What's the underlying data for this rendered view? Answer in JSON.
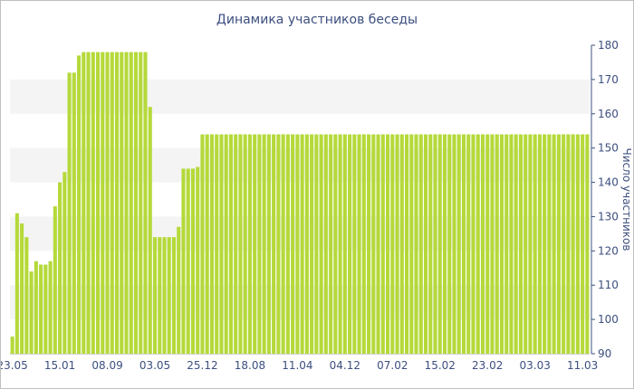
{
  "chart_data": {
    "type": "bar",
    "title": "Динамика участников беседы",
    "ylabel": "Число участников",
    "ylim": [
      90,
      180
    ],
    "y_ticks": [
      90,
      100,
      110,
      120,
      130,
      140,
      150,
      160,
      170,
      180
    ],
    "y_axis_position": "right",
    "x_tick_labels": [
      {
        "index": 0,
        "label": "23.05"
      },
      {
        "index": 10,
        "label": "15.01"
      },
      {
        "index": 20,
        "label": "08.09"
      },
      {
        "index": 30,
        "label": "03.05"
      },
      {
        "index": 40,
        "label": "25.12"
      },
      {
        "index": 50,
        "label": "18.08"
      },
      {
        "index": 60,
        "label": "11.04"
      },
      {
        "index": 70,
        "label": "04.12"
      },
      {
        "index": 80,
        "label": "07.02"
      },
      {
        "index": 90,
        "label": "15.02"
      },
      {
        "index": 100,
        "label": "23.02"
      },
      {
        "index": 110,
        "label": "03.03"
      },
      {
        "index": 120,
        "label": "11.03"
      }
    ],
    "grid": "alternating horizontal bands",
    "bar_color": "#b5d93a",
    "band_color": "#f4f4f4",
    "text_color": "#3d4f7f",
    "values": [
      95,
      131,
      128,
      124,
      114,
      117,
      116,
      116,
      117,
      133,
      140,
      143,
      172,
      172,
      177,
      178,
      178,
      178,
      178,
      178,
      178,
      178,
      178,
      178,
      178,
      178,
      178,
      178,
      178,
      162,
      124,
      124,
      124,
      124,
      124,
      127,
      144,
      144,
      144,
      144.5,
      154,
      154,
      154,
      154,
      154,
      154,
      154,
      154,
      154,
      154,
      154,
      154,
      154,
      154,
      154,
      154,
      154,
      154,
      154,
      154,
      154,
      154,
      154,
      154,
      154,
      154,
      154,
      154,
      154,
      154,
      154,
      154,
      154,
      154,
      154,
      154,
      154,
      154,
      154,
      154,
      154,
      154,
      154,
      154,
      154,
      154,
      154,
      154,
      154,
      154,
      154,
      154,
      154,
      154,
      154,
      154,
      154,
      154,
      154,
      154,
      154,
      154,
      154,
      154,
      154,
      154,
      154,
      154,
      154,
      154,
      154,
      154,
      154,
      154,
      154,
      154,
      154,
      154,
      154,
      154,
      154,
      154
    ]
  }
}
